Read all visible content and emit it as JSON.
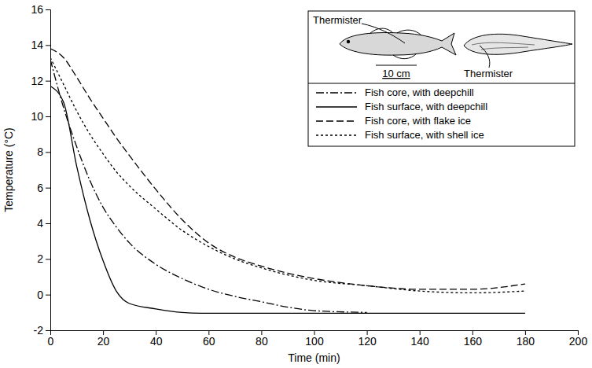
{
  "chart_data": {
    "type": "line",
    "x_label": "Time (min)",
    "y_label": "Temperature (°C)",
    "x": [
      0,
      5,
      10,
      15,
      20,
      25,
      30,
      40,
      50,
      60,
      70,
      80,
      90,
      100,
      120,
      140,
      160,
      180
    ],
    "series": [
      {
        "name": "Fish core, with deepchill",
        "color": "#000000",
        "line_style": "dashdot",
        "values": [
          13.2,
          10.5,
          8.3,
          6.4,
          4.9,
          3.8,
          2.9,
          1.7,
          0.9,
          0.3,
          -0.1,
          -0.4,
          -0.7,
          -0.9,
          -1.0,
          null,
          null,
          null
        ]
      },
      {
        "name": "Fish surface, with deepchill",
        "color": "#000000",
        "line_style": "solid",
        "values": [
          11.7,
          10.8,
          7.2,
          4.2,
          1.9,
          0.2,
          -0.5,
          -0.8,
          -1.0,
          -1.05,
          -1.05,
          -1.05,
          -1.05,
          -1.05,
          -1.05,
          -1.05,
          -1.05,
          -1.05
        ]
      },
      {
        "name": "Fish core, with flake ice",
        "color": "#000000",
        "line_style": "dashed",
        "values": [
          13.8,
          13.3,
          12.2,
          11.0,
          9.9,
          8.8,
          7.8,
          5.9,
          4.2,
          2.9,
          2.1,
          1.6,
          1.2,
          0.9,
          0.5,
          0.3,
          0.3,
          0.6
        ]
      },
      {
        "name": "Fish surface, with shell ice",
        "color": "#000000",
        "line_style": "short-dash",
        "values": [
          13.3,
          11.8,
          10.3,
          9.0,
          7.9,
          6.9,
          6.1,
          4.8,
          3.6,
          2.7,
          2.0,
          1.5,
          1.1,
          0.8,
          0.5,
          0.2,
          0.1,
          0.2
        ]
      }
    ],
    "xlim": [
      0,
      200
    ],
    "xticks": [
      0,
      20,
      40,
      60,
      80,
      100,
      120,
      140,
      160,
      180,
      200
    ],
    "ylim": [
      -2,
      16
    ],
    "yticks": [
      -2,
      0,
      2,
      4,
      6,
      8,
      10,
      12,
      14,
      16
    ],
    "legend": "upper right",
    "grid": false,
    "annotations": [
      "Thermister",
      "10 cm",
      "Thermister"
    ]
  }
}
